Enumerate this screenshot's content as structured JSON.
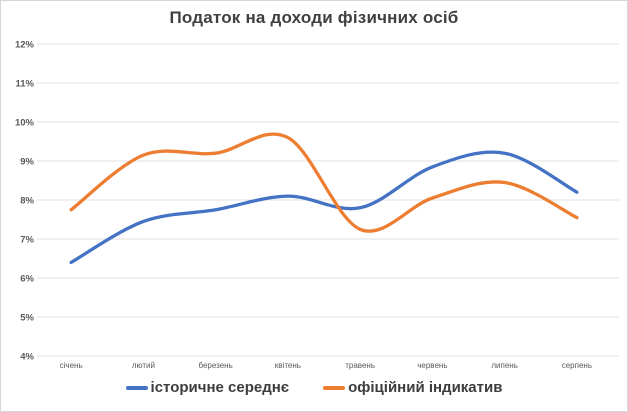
{
  "chart_data": {
    "type": "line",
    "title": "Податок на доходи фізичних осіб",
    "categories": [
      "січень",
      "лютий",
      "березень",
      "квітень",
      "травень",
      "червень",
      "липень",
      "серпень"
    ],
    "series": [
      {
        "name": "історичне середнє",
        "color": "#4472C4",
        "values": [
          6.4,
          7.45,
          7.75,
          8.1,
          7.8,
          8.85,
          9.2,
          8.2
        ]
      },
      {
        "name": "офіційний індикатив",
        "color": "#ED7D31",
        "values": [
          7.75,
          9.15,
          9.2,
          9.6,
          7.25,
          8.05,
          8.45,
          7.55
        ]
      }
    ],
    "xlabel": "",
    "ylabel": "",
    "ylim": [
      4,
      12
    ],
    "ytick_step": 1,
    "ytick_suffix": "%",
    "grid": true,
    "gridline_color": "#e2e2e2",
    "smooth": true,
    "legend_position": "bottom"
  }
}
